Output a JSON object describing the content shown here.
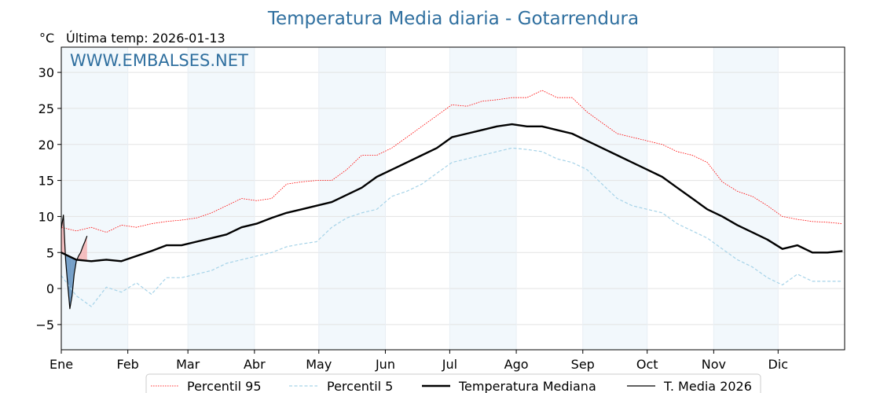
{
  "chart_data": {
    "type": "line",
    "title": "Temperatura Media diaria - Gotarrendura",
    "ylabel": "°C",
    "subtitle": "Última temp: 2026-01-13",
    "watermark": "WWW.EMBALSES.NET",
    "ylim": [
      -8.5,
      33.5
    ],
    "xlim": [
      1,
      366
    ],
    "yticks": [
      -5,
      0,
      5,
      10,
      15,
      20,
      25,
      30
    ],
    "month_labels": [
      "Ene",
      "Feb",
      "Mar",
      "Abr",
      "May",
      "Jun",
      "Jul",
      "Ago",
      "Sep",
      "Oct",
      "Nov",
      "Dic"
    ],
    "month_start_days": [
      1,
      32,
      60,
      91,
      121,
      152,
      182,
      213,
      244,
      274,
      305,
      335
    ],
    "shaded_bands": [
      [
        1,
        32
      ],
      [
        60,
        91
      ],
      [
        121,
        152
      ],
      [
        182,
        213
      ],
      [
        244,
        274
      ],
      [
        305,
        335
      ]
    ],
    "grid": true,
    "legend_position": "bottom-center",
    "series": [
      {
        "name": "Percentil 95",
        "color": "#ff0000",
        "style": "dotted",
        "x": [
          1,
          8,
          15,
          22,
          29,
          36,
          43,
          50,
          57,
          64,
          71,
          78,
          85,
          92,
          99,
          106,
          113,
          120,
          127,
          134,
          141,
          148,
          155,
          162,
          169,
          176,
          183,
          190,
          197,
          204,
          211,
          218,
          225,
          232,
          239,
          246,
          253,
          260,
          267,
          274,
          281,
          288,
          295,
          302,
          309,
          316,
          323,
          330,
          337,
          344,
          351,
          358,
          365
        ],
        "y": [
          8.5,
          8.0,
          8.5,
          7.8,
          8.8,
          8.5,
          9.0,
          9.3,
          9.5,
          9.8,
          10.5,
          11.5,
          12.5,
          12.2,
          12.5,
          14.5,
          14.8,
          15.0,
          15.0,
          16.5,
          18.5,
          18.5,
          19.5,
          21.0,
          22.5,
          24.0,
          25.5,
          25.3,
          26.0,
          26.2,
          26.5,
          26.5,
          27.5,
          26.5,
          26.5,
          24.5,
          23.0,
          21.5,
          21.0,
          20.5,
          20.0,
          19.0,
          18.5,
          17.5,
          14.8,
          13.5,
          12.8,
          11.5,
          10.0,
          9.6,
          9.3,
          9.2,
          9.0
        ]
      },
      {
        "name": "Percentil 5",
        "color": "#a6d3e8",
        "style": "dashed",
        "x": [
          1,
          8,
          15,
          22,
          29,
          36,
          43,
          50,
          57,
          64,
          71,
          78,
          85,
          92,
          99,
          106,
          113,
          120,
          127,
          134,
          141,
          148,
          155,
          162,
          169,
          176,
          183,
          190,
          197,
          204,
          211,
          218,
          225,
          232,
          239,
          246,
          253,
          260,
          267,
          274,
          281,
          288,
          295,
          302,
          309,
          316,
          323,
          330,
          337,
          344,
          351,
          358,
          365
        ],
        "y": [
          1.8,
          -1.0,
          -2.5,
          0.2,
          -0.5,
          0.8,
          -0.8,
          1.5,
          1.5,
          2.0,
          2.5,
          3.5,
          4.0,
          4.5,
          5.0,
          5.8,
          6.2,
          6.5,
          8.5,
          9.8,
          10.5,
          11.0,
          12.8,
          13.5,
          14.5,
          16.0,
          17.5,
          18.0,
          18.5,
          19.0,
          19.5,
          19.3,
          19.0,
          18.0,
          17.5,
          16.5,
          14.5,
          12.5,
          11.5,
          11.0,
          10.5,
          9.0,
          8.0,
          7.0,
          5.5,
          4.0,
          3.0,
          1.5,
          0.5,
          2.0,
          1.0,
          1.0,
          1.0
        ]
      },
      {
        "name": "Temperatura Mediana",
        "color": "#000000",
        "style": "solid-thick",
        "x": [
          1,
          8,
          15,
          22,
          29,
          36,
          43,
          50,
          57,
          64,
          71,
          78,
          85,
          92,
          99,
          106,
          113,
          120,
          127,
          134,
          141,
          148,
          155,
          162,
          169,
          176,
          183,
          190,
          197,
          204,
          211,
          218,
          225,
          232,
          239,
          246,
          253,
          260,
          267,
          274,
          281,
          288,
          295,
          302,
          309,
          316,
          323,
          330,
          337,
          344,
          351,
          358,
          365
        ],
        "y": [
          5.0,
          4.0,
          3.8,
          4.0,
          3.8,
          4.5,
          5.2,
          6.0,
          6.0,
          6.5,
          7.0,
          7.5,
          8.5,
          9.0,
          9.8,
          10.5,
          11.0,
          11.5,
          12.0,
          13.0,
          14.0,
          15.5,
          16.5,
          17.5,
          18.5,
          19.5,
          21.0,
          21.5,
          22.0,
          22.5,
          22.8,
          22.5,
          22.5,
          22.0,
          21.5,
          20.5,
          19.5,
          18.5,
          17.5,
          16.5,
          15.5,
          14.0,
          12.5,
          11.0,
          10.0,
          8.8,
          7.8,
          6.8,
          5.5,
          6.0,
          5.0,
          5.0,
          5.2
        ]
      },
      {
        "name": "T. Media 2026",
        "color": "#000000",
        "style": "solid-thin",
        "x": [
          1,
          2,
          3,
          4,
          5,
          6,
          7,
          8,
          9,
          10,
          11,
          12,
          13
        ],
        "y": [
          8.3,
          10.2,
          4.0,
          0.5,
          -2.8,
          -1.0,
          2.0,
          3.8,
          4.5,
          5.0,
          5.8,
          6.5,
          7.3
        ]
      }
    ]
  }
}
